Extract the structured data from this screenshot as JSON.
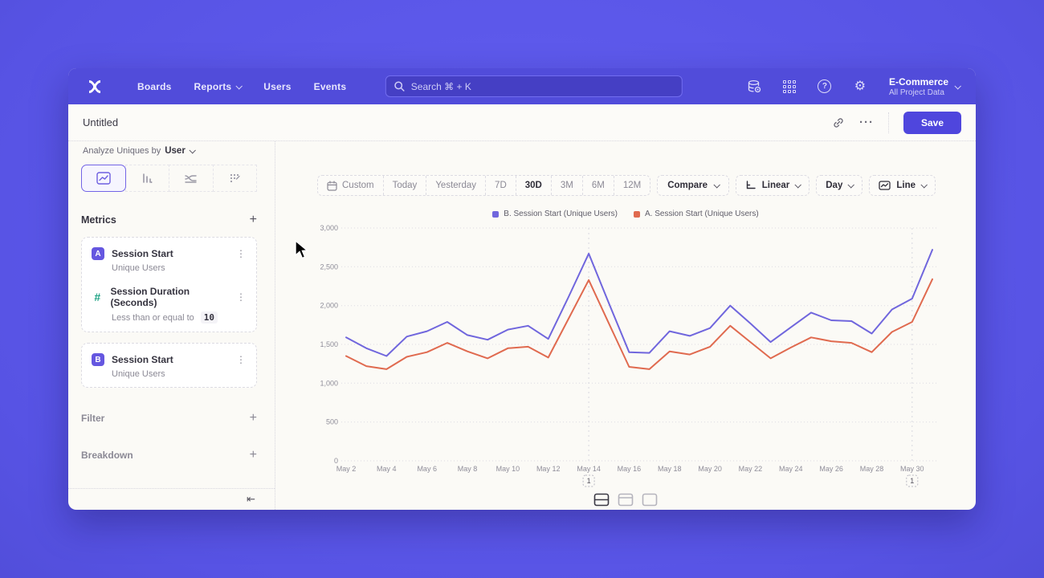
{
  "nav": {
    "items": [
      {
        "label": "Boards"
      },
      {
        "label": "Reports"
      },
      {
        "label": "Users"
      },
      {
        "label": "Events"
      }
    ],
    "search": {
      "placeholder": "Search  ⌘ + K"
    },
    "project": {
      "name": "E-Commerce",
      "scope": "All Project Data"
    }
  },
  "titlebar": {
    "title": "Untitled",
    "ellipsis": "···",
    "save_label": "Save"
  },
  "sidebar": {
    "analyze_label": "Analyze Uniques by",
    "analyze_value": "User",
    "metrics_title": "Metrics",
    "metrics": [
      {
        "badge": "A",
        "name": "Session Start",
        "subtitle": "Unique Users"
      },
      {
        "badge": "#",
        "name": "Session Duration (Seconds)",
        "subtitle": "Less than or equal to",
        "value": "10"
      },
      {
        "badge": "B",
        "name": "Session Start",
        "subtitle": "Unique Users"
      }
    ],
    "sections": [
      {
        "label": "Filter"
      },
      {
        "label": "Breakdown"
      }
    ],
    "collapse_icon": "⇤",
    "kebab_icon": "⋮",
    "plus_icon": "+"
  },
  "controls": {
    "ranges": [
      "Custom",
      "Today",
      "Yesterday",
      "7D",
      "30D",
      "3M",
      "6M",
      "12M"
    ],
    "active_range": "30D",
    "compare_label": "Compare",
    "scale_label": "Linear",
    "interval_label": "Day",
    "chart_type_label": "Line"
  },
  "chart_data": {
    "type": "line",
    "x": [
      "May 2",
      "May 3",
      "May 4",
      "May 5",
      "May 6",
      "May 7",
      "May 8",
      "May 9",
      "May 10",
      "May 11",
      "May 12",
      "May 13",
      "May 14",
      "May 15",
      "May 16",
      "May 17",
      "May 18",
      "May 19",
      "May 20",
      "May 21",
      "May 22",
      "May 23",
      "May 24",
      "May 25",
      "May 26",
      "May 27",
      "May 28",
      "May 29",
      "May 30",
      "May 31"
    ],
    "tick_labels": [
      "May 2",
      "May 4",
      "May 6",
      "May 8",
      "May 10",
      "May 12",
      "May 14",
      "May 16",
      "May 18",
      "May 20",
      "May 22",
      "May 24",
      "May 26",
      "May 28",
      "May 30"
    ],
    "series": [
      {
        "name": "B. Session Start (Unique Users)",
        "color": "#7066dd",
        "values": [
          1590,
          1450,
          1350,
          1600,
          1670,
          1790,
          1620,
          1560,
          1690,
          1740,
          1570,
          2110,
          2670,
          2030,
          1400,
          1390,
          1670,
          1610,
          1710,
          2000,
          1770,
          1530,
          1720,
          1910,
          1810,
          1800,
          1640,
          1950,
          2090,
          2720
        ]
      },
      {
        "name": "A. Session Start (Unique Users)",
        "color": "#e06a4f",
        "values": [
          1350,
          1220,
          1180,
          1340,
          1400,
          1520,
          1410,
          1320,
          1450,
          1470,
          1330,
          1830,
          2330,
          1770,
          1210,
          1180,
          1410,
          1370,
          1470,
          1740,
          1530,
          1320,
          1460,
          1590,
          1540,
          1520,
          1400,
          1660,
          1790,
          2340
        ]
      }
    ],
    "ylim": [
      0,
      3000
    ],
    "yticks": [
      0,
      500,
      1000,
      1500,
      2000,
      2500,
      3000
    ],
    "legend_position": "top-center",
    "grid": true,
    "annotations": [
      {
        "x_label": "May 14",
        "badge": "1"
      },
      {
        "x_label": "May 30",
        "badge": "1"
      }
    ]
  }
}
